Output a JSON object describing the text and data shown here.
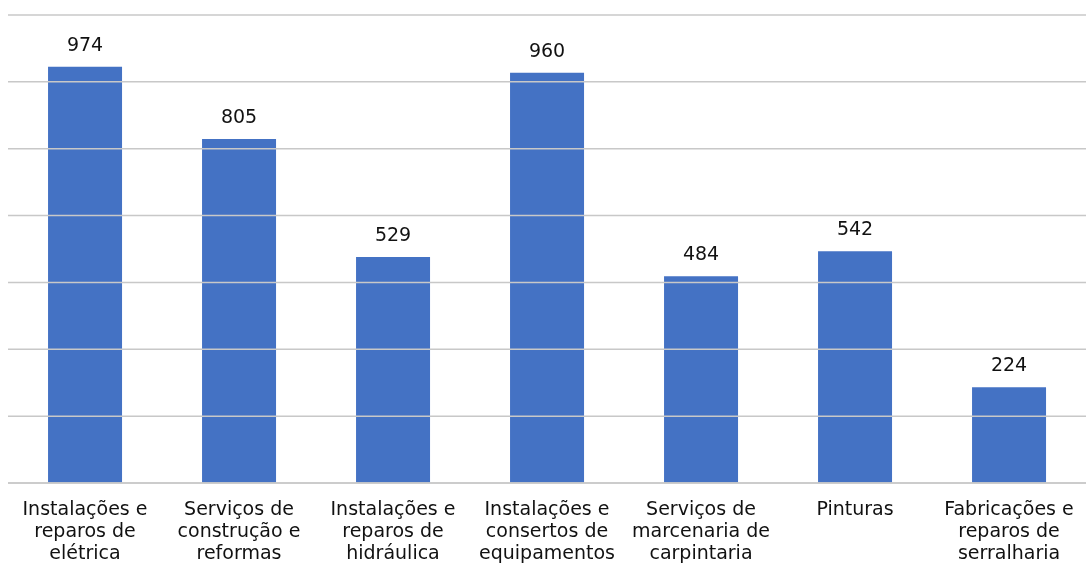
{
  "chart_data": {
    "type": "bar",
    "categories": [
      "Instalações e reparos de elétrica",
      "Serviços de construção e reformas",
      "Instalações e reparos de hidráulica",
      "Instalações e consertos de equipamentos",
      "Serviços de marcenaria de carpintaria",
      "Pinturas",
      "Fabricações e reparos de serralharia"
    ],
    "values": [
      974,
      805,
      529,
      960,
      484,
      542,
      224
    ],
    "color": "#4472c4",
    "data_labels": true,
    "grid": "y",
    "tick_labels": "x",
    "ylim": [
      0,
      1095
    ],
    "yticks": [
      {
        "value": 0,
        "label": null
      },
      {
        "value": 156,
        "label": null
      },
      {
        "value": 313,
        "label": null
      },
      {
        "value": 469,
        "label": null
      },
      {
        "value": 626,
        "label": null
      },
      {
        "value": 782,
        "label": null
      },
      {
        "value": 939,
        "label": null
      },
      {
        "value": 1095,
        "label": null
      }
    ]
  }
}
